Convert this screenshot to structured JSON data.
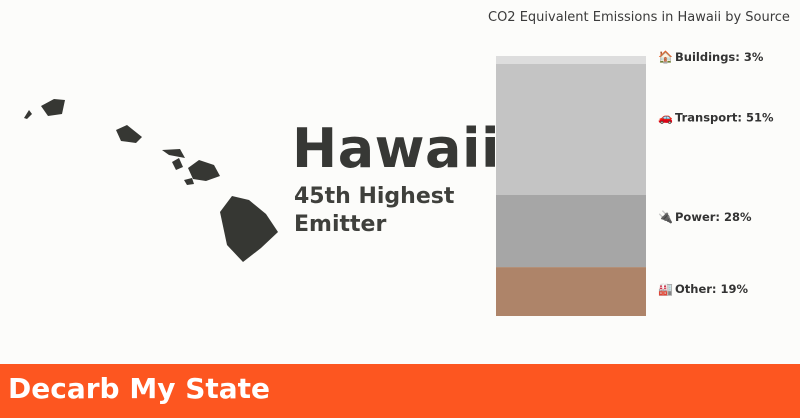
{
  "map": {
    "region": "Hawaii islands silhouette",
    "color": "#363733"
  },
  "state": {
    "name": "Hawaii",
    "rank": "45th Highest",
    "rank_suffix": "Emitter"
  },
  "chart_data": {
    "type": "bar",
    "title": "CO2 Equivalent Emissions in Hawaii by Source",
    "stacked": true,
    "categories": [
      "Other",
      "Power",
      "Transport",
      "Buildings"
    ],
    "values": [
      19,
      28,
      51,
      3
    ],
    "labels": [
      "Other: 19%",
      "Power: 28%",
      "Transport: 51%",
      "Buildings: 3%"
    ],
    "icons": [
      "factory-icon",
      "plug-icon",
      "car-icon",
      "house-icon"
    ],
    "colors": [
      "#ae8469",
      "#a6a6a6",
      "#c4c4c4",
      "#dddddd"
    ],
    "unit": "%"
  },
  "footer": {
    "brand": "Decarb My State",
    "color": "#fd5620"
  }
}
